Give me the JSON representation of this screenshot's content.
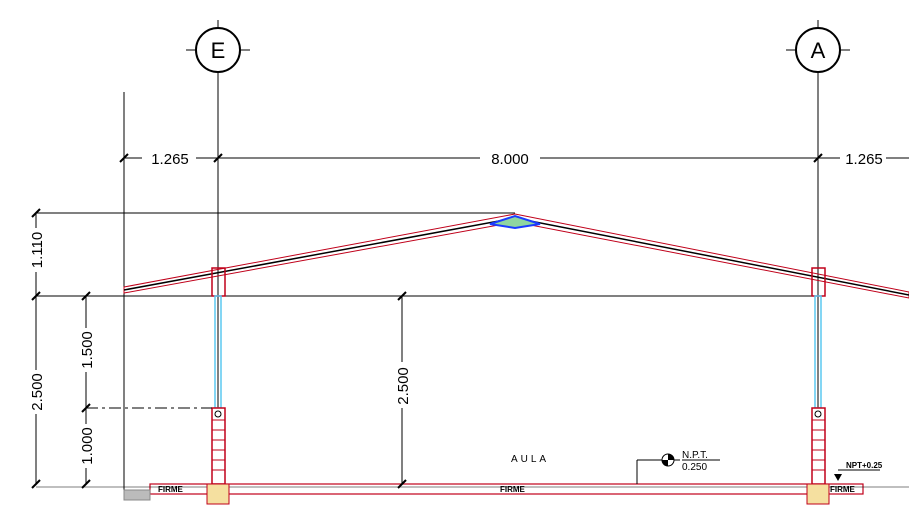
{
  "axes": {
    "left": "E",
    "right": "A"
  },
  "dimensions": {
    "top_left_overhang": "1.265",
    "span": "8.000",
    "top_right_overhang": "1.265",
    "roof_height": "1.110",
    "total_height": "2.500",
    "window_height": "1.500",
    "sill_height": "1.000",
    "interior_height": "2.500"
  },
  "labels": {
    "room": "AULA",
    "floor_finish": "FIRME",
    "npt_title": "N.P.T.",
    "npt_value": "0.250",
    "npt_right": "NPT+0.25"
  },
  "colors": {
    "line": "#000000",
    "red": "#c0001a",
    "cyan": "#5bc8f0",
    "blue": "#1a3cff",
    "green": "#8fd6a0"
  }
}
